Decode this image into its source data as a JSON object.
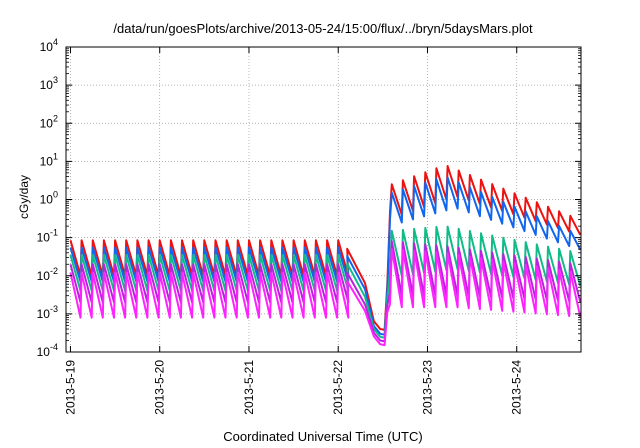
{
  "chart_data": {
    "type": "line",
    "title": "/data/run/goesPlots/archive/2013-05-24/15:00/flux/../bryn/5daysMars.plot",
    "xlabel": "Coordinated Universal Time (UTC)",
    "ylabel": "cGy/day",
    "yscale": "log",
    "ylim": [
      0.0001,
      10000
    ],
    "xlim_days": [
      -0.05,
      5.72
    ],
    "grid": true,
    "legend": "none",
    "x_ticks": [
      "2013-5-19",
      "2013-5-20",
      "2013-5-21",
      "2013-5-22",
      "2013-5-23",
      "2013-5-24"
    ],
    "y_ticks": [
      {
        "base": "10",
        "exp": "-4",
        "value": 0.0001
      },
      {
        "base": "10",
        "exp": "-3",
        "value": 0.001
      },
      {
        "base": "10",
        "exp": "-2",
        "value": 0.01
      },
      {
        "base": "10",
        "exp": "-1",
        "value": 0.1
      },
      {
        "base": "10",
        "exp": "0",
        "value": 1
      },
      {
        "base": "10",
        "exp": "1",
        "value": 10
      },
      {
        "base": "10",
        "exp": "2",
        "value": 100
      },
      {
        "base": "10",
        "exp": "3",
        "value": 1000
      },
      {
        "base": "10",
        "exp": "4",
        "value": 10000
      }
    ],
    "series": [
      {
        "color": "#ee1111",
        "sample_days": [
          0,
          3.6,
          4.2,
          5.7
        ],
        "sample_peaks": [
          0.085,
          2.5,
          8,
          0.3
        ],
        "sample_troughs": [
          0.01,
          0.4,
          1.2,
          0.1
        ]
      },
      {
        "color": "#1166ee",
        "sample_days": [
          0,
          3.6,
          4.2,
          5.7
        ],
        "sample_peaks": [
          0.055,
          1.5,
          4,
          0.12
        ],
        "sample_troughs": [
          0.007,
          0.25,
          0.6,
          0.04
        ]
      },
      {
        "color": "#11bb88",
        "sample_days": [
          0,
          3.6,
          4.2,
          5.7
        ],
        "sample_peaks": [
          0.035,
          0.15,
          0.2,
          0.04
        ],
        "sample_troughs": [
          0.004,
          0.01,
          0.015,
          0.005
        ]
      },
      {
        "color": "#bb22dd",
        "sample_days": [
          0,
          3.6,
          4.2,
          5.7
        ],
        "sample_peaks": [
          0.02,
          0.08,
          0.06,
          0.02
        ],
        "sample_troughs": [
          0.002,
          0.003,
          0.003,
          0.002
        ]
      },
      {
        "color": "#ff22ff",
        "sample_days": [
          0,
          3.6,
          4.2,
          5.7
        ],
        "sample_peaks": [
          0.012,
          0.05,
          0.04,
          0.012
        ],
        "sample_troughs": [
          0.0008,
          0.0015,
          0.0015,
          0.0008
        ]
      }
    ]
  }
}
